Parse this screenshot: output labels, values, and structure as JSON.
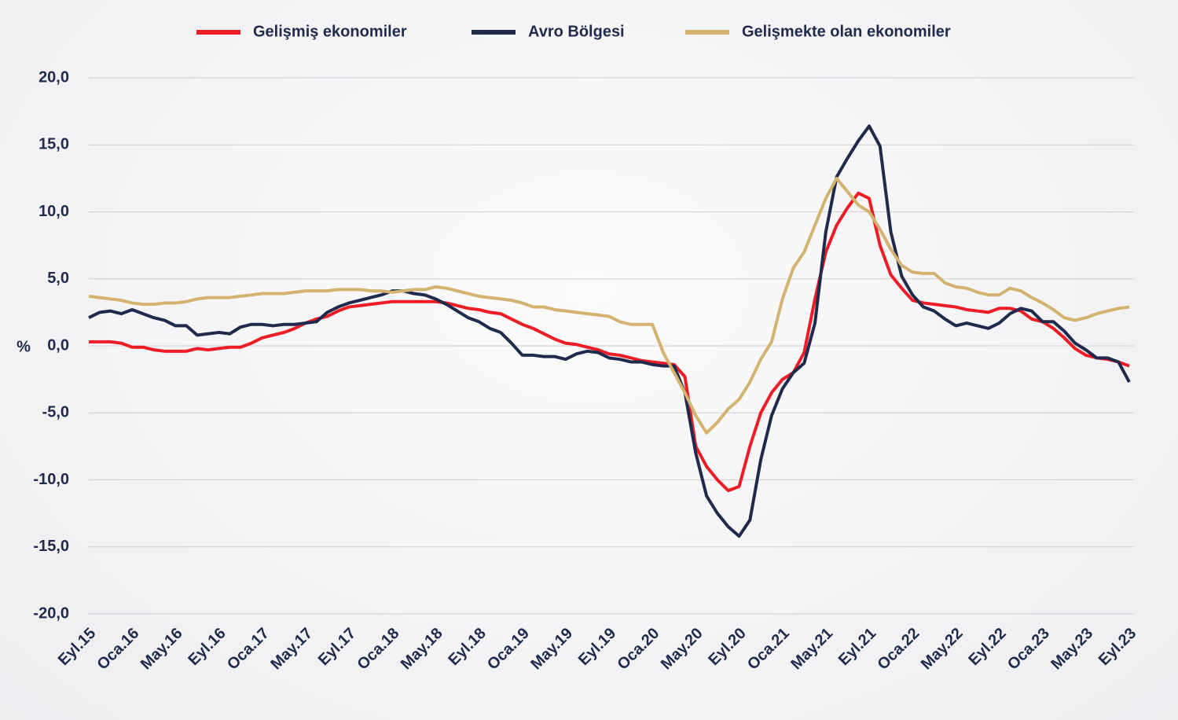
{
  "chart_data": {
    "type": "line",
    "ylabel": "%",
    "categories": [
      "Eyl.15",
      null,
      null,
      null,
      "Oca.16",
      null,
      null,
      null,
      "May.16",
      null,
      null,
      null,
      "Eyl.16",
      null,
      null,
      null,
      "Oca.17",
      null,
      null,
      null,
      "May.17",
      null,
      null,
      null,
      "Eyl.17",
      null,
      null,
      null,
      "Oca.18",
      null,
      null,
      null,
      "May.18",
      null,
      null,
      null,
      "Eyl.18",
      null,
      null,
      null,
      "Oca.19",
      null,
      null,
      null,
      "May.19",
      null,
      null,
      null,
      "Eyl.19",
      null,
      null,
      null,
      "Oca.20",
      null,
      null,
      null,
      "May.20",
      null,
      null,
      null,
      "Eyl.20",
      null,
      null,
      null,
      "Oca.21",
      null,
      null,
      null,
      "May.21",
      null,
      null,
      null,
      "Eyl.21",
      null,
      null,
      null,
      "Oca.22",
      null,
      null,
      null,
      "May.22",
      null,
      null,
      null,
      "Eyl.22",
      null,
      null,
      null,
      "Oca.23",
      null,
      null,
      null,
      "May.23",
      null,
      null,
      null,
      "Eyl.23"
    ],
    "series": [
      {
        "name": "Gelişmiş ekonomiler",
        "color": "#ee1c25",
        "values": [
          0.3,
          0.3,
          0.3,
          0.2,
          -0.1,
          -0.1,
          -0.3,
          -0.4,
          -0.4,
          -0.4,
          -0.2,
          -0.3,
          -0.2,
          -0.1,
          -0.1,
          0.2,
          0.6,
          0.8,
          1.0,
          1.3,
          1.7,
          2.0,
          2.2,
          2.6,
          2.9,
          3.0,
          3.1,
          3.2,
          3.3,
          3.3,
          3.3,
          3.3,
          3.3,
          3.2,
          3.0,
          2.8,
          2.7,
          2.5,
          2.4,
          2.0,
          1.6,
          1.3,
          0.9,
          0.5,
          0.2,
          0.1,
          -0.1,
          -0.3,
          -0.6,
          -0.7,
          -0.9,
          -1.1,
          -1.2,
          -1.3,
          -1.4,
          -2.3,
          -7.5,
          -9.0,
          -10.0,
          -10.8,
          -10.5,
          -7.5,
          -5.0,
          -3.5,
          -2.5,
          -2.0,
          -0.5,
          3.5,
          7.0,
          9.0,
          10.3,
          11.4,
          11.0,
          7.5,
          5.3,
          4.3,
          3.4,
          3.2,
          3.1,
          3.0,
          2.9,
          2.7,
          2.6,
          2.5,
          2.8,
          2.8,
          2.6,
          2.0,
          1.8,
          1.3,
          0.6,
          -0.2,
          -0.7,
          -0.9,
          -1.0,
          -1.2,
          -1.5
        ]
      },
      {
        "name": "Avro Bölgesi",
        "color": "#1f2a4d",
        "values": [
          2.1,
          2.5,
          2.6,
          2.4,
          2.7,
          2.4,
          2.1,
          1.9,
          1.5,
          1.5,
          0.8,
          0.9,
          1.0,
          0.9,
          1.4,
          1.6,
          1.6,
          1.5,
          1.6,
          1.6,
          1.7,
          1.8,
          2.5,
          2.9,
          3.2,
          3.4,
          3.6,
          3.8,
          4.1,
          4.1,
          3.9,
          3.8,
          3.5,
          3.1,
          2.6,
          2.1,
          1.8,
          1.3,
          1.0,
          0.2,
          -0.7,
          -0.7,
          -0.8,
          -0.8,
          -1.0,
          -0.6,
          -0.4,
          -0.5,
          -0.9,
          -1.0,
          -1.2,
          -1.2,
          -1.4,
          -1.5,
          -1.5,
          -3.5,
          -8.0,
          -11.2,
          -12.5,
          -13.5,
          -14.2,
          -13.0,
          -8.5,
          -5.2,
          -3.2,
          -2.0,
          -1.3,
          1.7,
          8.5,
          12.6,
          14.0,
          15.3,
          16.4,
          14.9,
          8.5,
          5.2,
          3.8,
          2.9,
          2.6,
          2.0,
          1.5,
          1.7,
          1.5,
          1.3,
          1.7,
          2.4,
          2.8,
          2.6,
          1.8,
          1.8,
          1.1,
          0.2,
          -0.3,
          -0.9,
          -0.9,
          -1.2,
          -2.7
        ]
      },
      {
        "name": "Gelişmekte olan ekonomiler",
        "color": "#d4b26f",
        "values": [
          3.7,
          3.6,
          3.5,
          3.4,
          3.2,
          3.1,
          3.1,
          3.2,
          3.2,
          3.3,
          3.5,
          3.6,
          3.6,
          3.6,
          3.7,
          3.8,
          3.9,
          3.9,
          3.9,
          4.0,
          4.1,
          4.1,
          4.1,
          4.2,
          4.2,
          4.2,
          4.1,
          4.1,
          4.0,
          4.1,
          4.2,
          4.2,
          4.4,
          4.3,
          4.1,
          3.9,
          3.7,
          3.6,
          3.5,
          3.4,
          3.2,
          2.9,
          2.9,
          2.7,
          2.6,
          2.5,
          2.4,
          2.3,
          2.2,
          1.8,
          1.6,
          1.6,
          1.6,
          -0.5,
          -2.0,
          -3.5,
          -5.2,
          -6.5,
          -5.7,
          -4.7,
          -4.0,
          -2.7,
          -1.0,
          0.3,
          3.5,
          5.8,
          7.0,
          9.0,
          11.0,
          12.5,
          11.5,
          10.5,
          10.0,
          8.7,
          7.2,
          6.0,
          5.5,
          5.4,
          5.4,
          4.7,
          4.4,
          4.3,
          4.0,
          3.8,
          3.8,
          4.3,
          4.1,
          3.6,
          3.2,
          2.7,
          2.1,
          1.9,
          2.1,
          2.4,
          2.6,
          2.8,
          2.9
        ]
      }
    ],
    "ylim": [
      -20,
      20
    ],
    "yticks": [
      {
        "value": -20,
        "label": "-20,0"
      },
      {
        "value": -15,
        "label": "-15,0"
      },
      {
        "value": -10,
        "label": "-10,0"
      },
      {
        "value": -5,
        "label": "-5,0"
      },
      {
        "value": 0,
        "label": "0,0"
      },
      {
        "value": 5,
        "label": "5,0"
      },
      {
        "value": 10,
        "label": "10,0"
      },
      {
        "value": 15,
        "label": "15,0"
      },
      {
        "value": 20,
        "label": "20,0"
      }
    ],
    "grid": true,
    "legend": "top"
  }
}
